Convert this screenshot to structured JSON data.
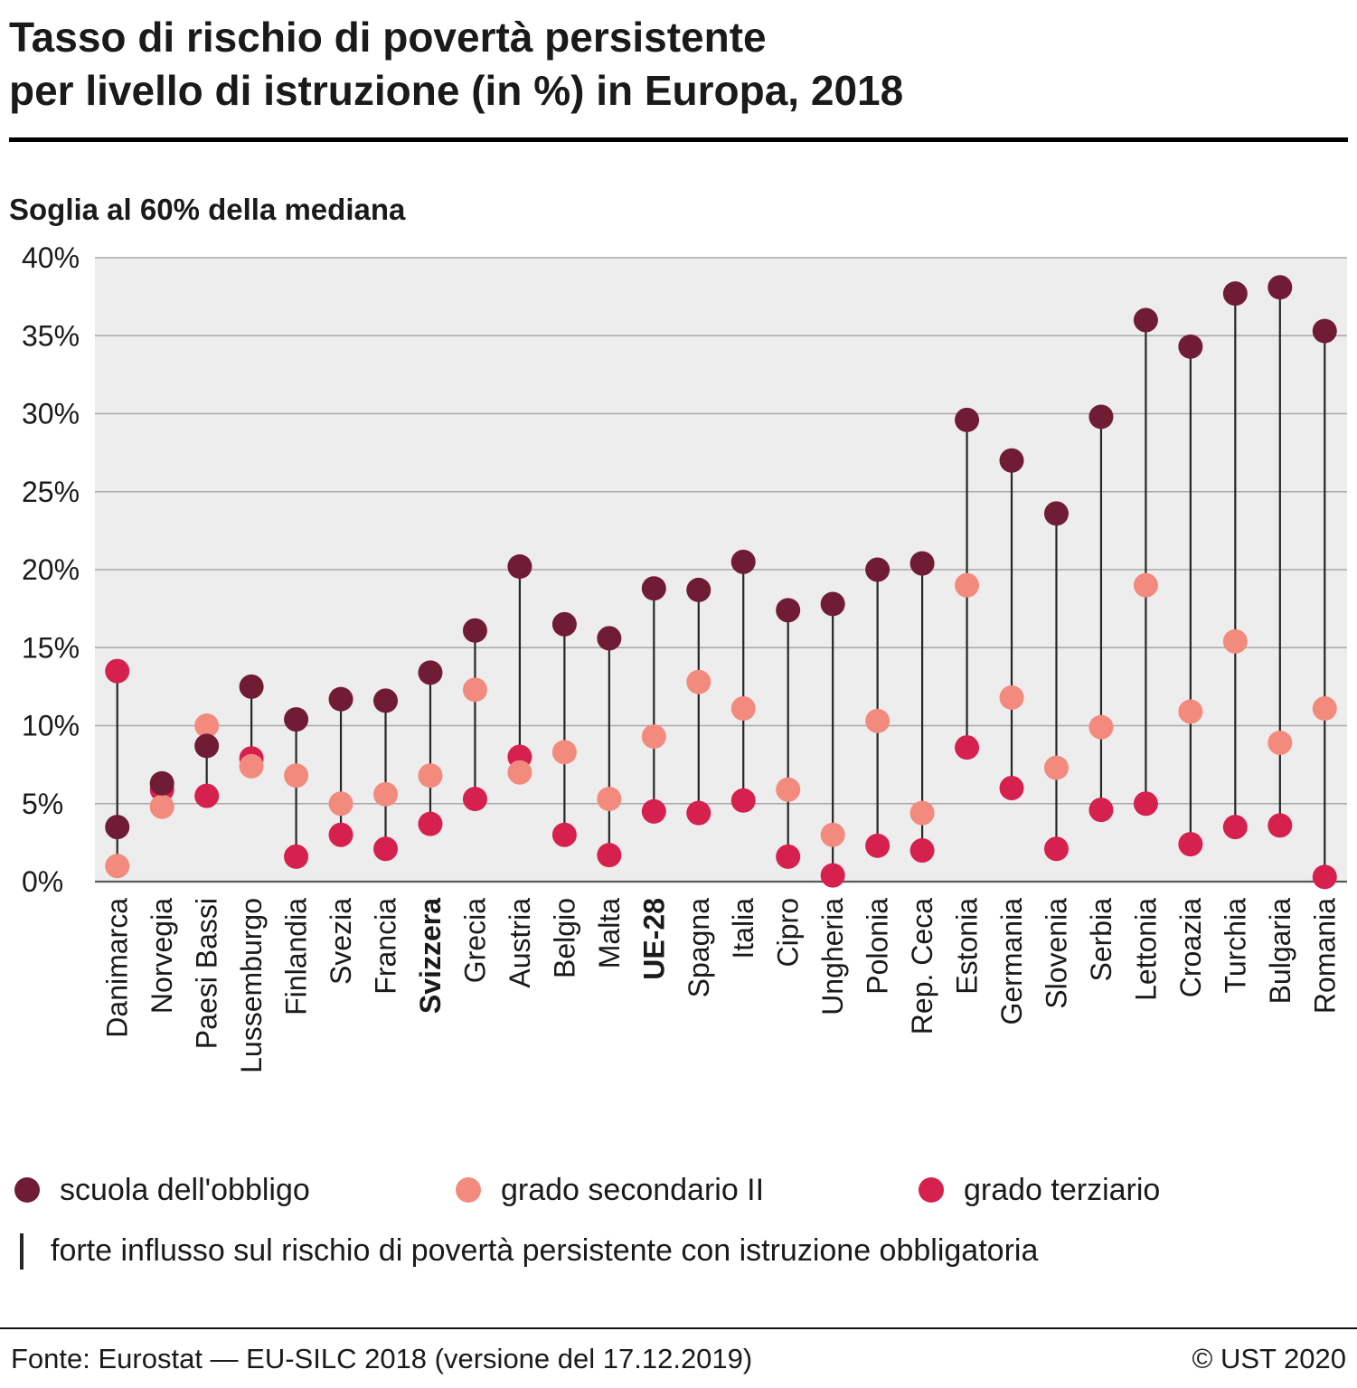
{
  "header": {
    "title_line1": "Tasso di rischio di povertà persistente",
    "title_line2": "per livello di istruzione (in %) in Europa, 2018",
    "subtitle": "Soglia al 60% della mediana"
  },
  "chart_data": {
    "type": "scatter",
    "subtype": "dot-range",
    "title": "Tasso di rischio di povertà persistente per livello di istruzione (in %) in Europa, 2018",
    "subtitle": "Soglia al 60% della mediana",
    "ylim": [
      0,
      40
    ],
    "ytick_step": 5,
    "ytick_suffix": "%",
    "grid": true,
    "plot_bg": "#ededed",
    "grid_color": "#a8a8a8",
    "axis_color": "#595959",
    "range_line_color": "#262626",
    "categories": [
      "Danimarca",
      "Norvegia",
      "Paesi Bassi",
      "Lussemburgo",
      "Finlandia",
      "Svezia",
      "Francia",
      "Svizzera",
      "Grecia",
      "Austria",
      "Belgio",
      "Malta",
      "UE-28",
      "Spagna",
      "Italia",
      "Cipro",
      "Ungheria",
      "Polonia",
      "Rep. Ceca",
      "Estonia",
      "Germania",
      "Slovenia",
      "Serbia",
      "Lettonia",
      "Croazia",
      "Turchia",
      "Bulgaria",
      "Romania"
    ],
    "bold_categories": [
      "Svizzera",
      "UE-28"
    ],
    "series": [
      {
        "name": "scuola dell'obbligo",
        "color": "#701c35",
        "values": [
          3.5,
          6.3,
          8.7,
          12.5,
          10.4,
          11.7,
          11.6,
          13.4,
          16.1,
          20.2,
          16.5,
          15.6,
          18.8,
          18.7,
          20.5,
          17.4,
          17.8,
          20.0,
          20.4,
          29.6,
          27.0,
          23.6,
          29.8,
          36.0,
          34.3,
          37.7,
          38.1,
          35.3
        ]
      },
      {
        "name": "grado secondario II",
        "color": "#f28b7d",
        "values": [
          1.0,
          4.8,
          10.0,
          7.4,
          6.8,
          5.0,
          5.6,
          6.8,
          12.3,
          7.0,
          8.3,
          5.3,
          9.3,
          12.8,
          11.1,
          5.9,
          3.0,
          10.3,
          4.4,
          19.0,
          11.8,
          7.3,
          9.9,
          19.0,
          10.9,
          15.4,
          8.9,
          11.1
        ]
      },
      {
        "name": "grado terziario",
        "color": "#d6204e",
        "values": [
          13.5,
          5.9,
          5.5,
          7.9,
          1.6,
          3.0,
          2.1,
          3.7,
          5.3,
          8.0,
          3.0,
          1.7,
          4.5,
          4.4,
          5.2,
          1.6,
          0.4,
          2.3,
          2.0,
          8.6,
          6.0,
          2.1,
          4.6,
          5.0,
          2.4,
          3.5,
          3.6,
          0.3
        ]
      }
    ]
  },
  "legend": {
    "items": [
      {
        "label": "scuola dell'obbligo",
        "color": "#701c35"
      },
      {
        "label": "grado secondario II",
        "color": "#f28b7d"
      },
      {
        "label": "grado terziario",
        "color": "#d6204e"
      }
    ],
    "range_note": "forte influsso sul rischio di povertà persistente con istruzione obbligatoria"
  },
  "footer": {
    "source": "Fonte: Eurostat — EU-SILC 2018 (versione del 17.12.2019)",
    "copyright": "© UST 2020"
  }
}
